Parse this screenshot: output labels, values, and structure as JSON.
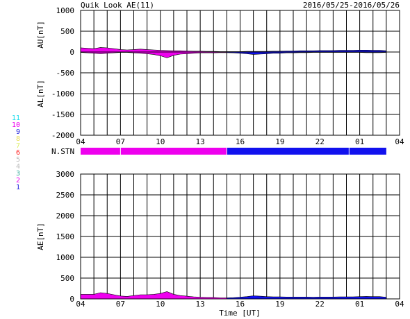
{
  "header": {
    "title": "Quik Look AE(11)",
    "date_range": "2016/05/25-2016/05/26"
  },
  "station_legend": [
    {
      "num": "11",
      "color": "#22ddee"
    },
    {
      "num": "10",
      "color": "#ee00ee"
    },
    {
      "num": "9",
      "color": "#2222dd"
    },
    {
      "num": "8",
      "color": "#e8dd55"
    },
    {
      "num": "7",
      "color": "#ddee66"
    },
    {
      "num": "6",
      "color": "#ff2222"
    },
    {
      "num": "5",
      "color": "#bbbbbb"
    },
    {
      "num": "4",
      "color": "#bbbbbb"
    },
    {
      "num": "3",
      "color": "#33aa99"
    },
    {
      "num": "2",
      "color": "#ee00ee"
    },
    {
      "num": "1",
      "color": "#2222dd"
    }
  ],
  "chart_data": [
    {
      "type": "area",
      "panel": "AU/AL",
      "ylabel_upper": "AU[nT]",
      "ylabel_lower": "AL[nT]",
      "ylim": [
        -2000,
        1000
      ],
      "y_ticks": [
        "1000",
        "500",
        "0",
        "-500",
        "-1000",
        "-1500",
        "-2000"
      ],
      "x_range_hours": [
        4,
        28
      ],
      "x_ticks": [
        "04",
        "07",
        "10",
        "13",
        "16",
        "19",
        "22",
        "01",
        "04"
      ],
      "data_end_hour": 27.0,
      "color_change_hour": 15.0,
      "colors": {
        "before": "#ee00ee",
        "after": "#1111ee"
      },
      "series": [
        {
          "name": "AU",
          "x": [
            4.0,
            4.5,
            5.0,
            5.5,
            6.0,
            6.5,
            7.0,
            7.5,
            8.0,
            8.5,
            9.0,
            9.5,
            10.0,
            10.5,
            11.0,
            11.5,
            12.0,
            12.5,
            13.0,
            13.5,
            14.0,
            14.5,
            15.0,
            15.5,
            16.0,
            16.5,
            17.0,
            17.5,
            18.0,
            18.5,
            19.0,
            19.5,
            20.0,
            20.5,
            21.0,
            21.5,
            22.0,
            22.5,
            23.0,
            23.5,
            24.0,
            24.5,
            25.0,
            25.5,
            26.0,
            26.5,
            27.0
          ],
          "y": [
            100,
            90,
            80,
            110,
            100,
            80,
            60,
            50,
            60,
            70,
            60,
            50,
            40,
            35,
            30,
            30,
            25,
            20,
            20,
            15,
            15,
            10,
            10,
            10,
            10,
            15,
            15,
            15,
            15,
            20,
            20,
            25,
            25,
            30,
            30,
            30,
            35,
            35,
            35,
            40,
            40,
            40,
            45,
            45,
            40,
            40,
            30
          ]
        },
        {
          "name": "AL",
          "x": [
            4.0,
            4.5,
            5.0,
            5.5,
            6.0,
            6.5,
            7.0,
            7.5,
            8.0,
            8.5,
            9.0,
            9.5,
            10.0,
            10.5,
            11.0,
            11.5,
            12.0,
            12.5,
            13.0,
            13.5,
            14.0,
            14.5,
            15.0,
            15.5,
            16.0,
            16.5,
            17.0,
            17.5,
            18.0,
            18.5,
            19.0,
            19.5,
            20.0,
            20.5,
            21.0,
            21.5,
            22.0,
            22.5,
            23.0,
            23.5,
            24.0,
            24.5,
            25.0,
            25.5,
            26.0,
            26.5,
            27.0
          ],
          "y": [
            -10,
            -20,
            -30,
            -40,
            -30,
            -20,
            -10,
            -10,
            -20,
            -30,
            -40,
            -60,
            -90,
            -140,
            -80,
            -50,
            -40,
            -30,
            -20,
            -20,
            -20,
            -15,
            -15,
            -20,
            -30,
            -40,
            -60,
            -50,
            -40,
            -30,
            -30,
            -20,
            -20,
            -15,
            -15,
            -10,
            -10,
            -10,
            -10,
            -10,
            -10,
            -10,
            -10,
            -15,
            -15,
            -15,
            -10
          ]
        }
      ]
    },
    {
      "type": "area",
      "panel": "AE",
      "ylabel": "AE[nT]",
      "xlabel": "Time [UT]",
      "ylim": [
        0,
        3000
      ],
      "y_ticks": [
        "3000",
        "2500",
        "2000",
        "1500",
        "1000",
        "500",
        "0"
      ],
      "x_range_hours": [
        4,
        28
      ],
      "x_ticks": [
        "04",
        "07",
        "10",
        "13",
        "16",
        "19",
        "22",
        "01",
        "04"
      ],
      "data_end_hour": 27.0,
      "color_change_hour": 15.0,
      "colors": {
        "before": "#ee00ee",
        "after": "#1111ee"
      },
      "series": [
        {
          "name": "AE",
          "x": [
            4.0,
            4.5,
            5.0,
            5.5,
            6.0,
            6.5,
            7.0,
            7.5,
            8.0,
            8.5,
            9.0,
            9.5,
            10.0,
            10.5,
            11.0,
            11.5,
            12.0,
            12.5,
            13.0,
            13.5,
            14.0,
            14.5,
            15.0,
            15.5,
            16.0,
            16.5,
            17.0,
            17.5,
            18.0,
            18.5,
            19.0,
            19.5,
            20.0,
            20.5,
            21.0,
            21.5,
            22.0,
            22.5,
            23.0,
            23.5,
            24.0,
            24.5,
            25.0,
            25.5,
            26.0,
            26.5,
            27.0
          ],
          "y": [
            110,
            110,
            110,
            150,
            130,
            100,
            70,
            60,
            80,
            100,
            100,
            110,
            130,
            175,
            110,
            80,
            65,
            50,
            40,
            35,
            35,
            25,
            25,
            30,
            40,
            55,
            75,
            65,
            55,
            50,
            50,
            45,
            45,
            45,
            45,
            40,
            45,
            45,
            45,
            50,
            50,
            50,
            55,
            60,
            55,
            55,
            40
          ]
        }
      ]
    }
  ],
  "station_bar": {
    "label": "N.STN",
    "segments": [
      {
        "from_hour": 4.0,
        "to_hour": 15.0,
        "color": "#ee00ee"
      },
      {
        "from_hour": 15.0,
        "to_hour": 27.0,
        "color": "#1111ee"
      }
    ],
    "tick_hours": [
      7.0,
      15.0,
      24.2
    ]
  }
}
